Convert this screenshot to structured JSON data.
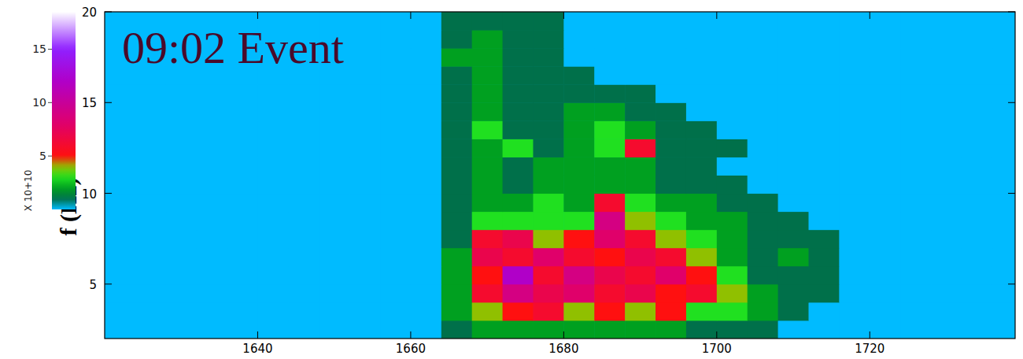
{
  "chart_data": {
    "type": "heatmap",
    "title": "09:02 Event",
    "y_label": "f (Hz)",
    "xlim": [
      1620,
      1739
    ],
    "ylim": [
      2,
      20
    ],
    "xticks": [
      1640,
      1660,
      1680,
      1700,
      1720
    ],
    "yticks": [
      5,
      10,
      15,
      20
    ],
    "x": [
      1620,
      1624,
      1628,
      1632,
      1636,
      1640,
      1644,
      1648,
      1652,
      1656,
      1660,
      1664,
      1668,
      1672,
      1676,
      1680,
      1684,
      1688,
      1692,
      1696,
      1700,
      1704,
      1708,
      1712,
      1716,
      1720,
      1724,
      1728,
      1732,
      1736
    ],
    "y": [
      2,
      3,
      4,
      5,
      6,
      7,
      8,
      9,
      10,
      11,
      12,
      13,
      14,
      15,
      16,
      17,
      18,
      19
    ],
    "cells": [
      [
        0,
        0,
        0,
        0,
        0,
        0,
        0,
        0,
        0,
        0,
        0,
        1,
        2,
        2,
        2,
        2,
        2,
        2,
        2,
        1,
        1,
        1,
        0,
        0,
        0,
        0,
        0,
        0,
        0,
        0
      ],
      [
        0,
        0,
        0,
        0,
        0,
        0,
        0,
        0,
        0,
        0,
        0,
        2,
        4,
        5,
        6,
        4,
        5,
        4,
        5,
        3,
        3,
        2,
        1,
        0,
        0,
        0,
        0,
        0,
        0,
        0
      ],
      [
        0,
        0,
        0,
        0,
        0,
        0,
        0,
        0,
        0,
        0,
        0,
        2,
        6,
        9,
        7,
        8,
        6,
        7,
        5,
        6,
        4,
        2,
        1,
        1,
        0,
        0,
        0,
        0,
        0,
        0
      ],
      [
        0,
        0,
        0,
        0,
        0,
        0,
        0,
        0,
        0,
        0,
        0,
        2,
        5,
        12,
        6,
        9,
        7,
        6,
        8,
        5,
        3,
        1,
        1,
        1,
        0,
        0,
        0,
        0,
        0,
        0
      ],
      [
        0,
        0,
        0,
        0,
        0,
        0,
        0,
        0,
        0,
        0,
        0,
        2,
        7,
        6,
        8,
        6,
        5,
        7,
        6,
        4,
        2,
        1,
        2,
        1,
        0,
        0,
        0,
        0,
        0,
        0
      ],
      [
        0,
        0,
        0,
        0,
        0,
        0,
        0,
        0,
        0,
        0,
        0,
        1,
        6,
        7,
        4,
        5,
        8,
        6,
        4,
        3,
        2,
        1,
        1,
        1,
        0,
        0,
        0,
        0,
        0,
        0
      ],
      [
        0,
        0,
        0,
        0,
        0,
        0,
        0,
        0,
        0,
        0,
        0,
        1,
        3,
        3,
        3,
        3,
        9,
        4,
        3,
        2,
        2,
        1,
        1,
        0,
        0,
        0,
        0,
        0,
        0,
        0
      ],
      [
        0,
        0,
        0,
        0,
        0,
        0,
        0,
        0,
        0,
        0,
        0,
        1,
        2,
        2,
        3,
        2,
        6,
        3,
        2,
        2,
        1,
        1,
        0,
        0,
        0,
        0,
        0,
        0,
        0,
        0
      ],
      [
        0,
        0,
        0,
        0,
        0,
        0,
        0,
        0,
        0,
        0,
        0,
        1,
        2,
        1,
        2,
        2,
        2,
        2,
        1,
        1,
        1,
        0,
        0,
        0,
        0,
        0,
        0,
        0,
        0,
        0
      ],
      [
        0,
        0,
        0,
        0,
        0,
        0,
        0,
        0,
        0,
        0,
        0,
        1,
        2,
        1,
        2,
        2,
        2,
        2,
        1,
        1,
        0,
        0,
        0,
        0,
        0,
        0,
        0,
        0,
        0,
        0
      ],
      [
        0,
        0,
        0,
        0,
        0,
        0,
        0,
        0,
        0,
        0,
        0,
        1,
        2,
        3,
        1,
        2,
        3,
        6,
        1,
        1,
        1,
        0,
        0,
        0,
        0,
        0,
        0,
        0,
        0,
        0
      ],
      [
        0,
        0,
        0,
        0,
        0,
        0,
        0,
        0,
        0,
        0,
        0,
        1,
        3,
        1,
        1,
        2,
        3,
        2,
        1,
        1,
        0,
        0,
        0,
        0,
        0,
        0,
        0,
        0,
        0,
        0
      ],
      [
        0,
        0,
        0,
        0,
        0,
        0,
        0,
        0,
        0,
        0,
        0,
        1,
        2,
        1,
        1,
        2,
        2,
        1,
        1,
        0,
        0,
        0,
        0,
        0,
        0,
        0,
        0,
        0,
        0,
        0
      ],
      [
        0,
        0,
        0,
        0,
        0,
        0,
        0,
        0,
        0,
        0,
        0,
        1,
        2,
        1,
        1,
        1,
        1,
        1,
        0,
        0,
        0,
        0,
        0,
        0,
        0,
        0,
        0,
        0,
        0,
        0
      ],
      [
        0,
        0,
        0,
        0,
        0,
        0,
        0,
        0,
        0,
        0,
        0,
        1,
        2,
        1,
        1,
        1,
        0,
        0,
        0,
        0,
        0,
        0,
        0,
        0,
        0,
        0,
        0,
        0,
        0,
        0
      ],
      [
        0,
        0,
        0,
        0,
        0,
        0,
        0,
        0,
        0,
        0,
        0,
        2,
        2,
        1,
        1,
        0,
        0,
        0,
        0,
        0,
        0,
        0,
        0,
        0,
        0,
        0,
        0,
        0,
        0,
        0
      ],
      [
        0,
        0,
        0,
        0,
        0,
        0,
        0,
        0,
        0,
        0,
        0,
        1,
        2,
        1,
        1,
        0,
        0,
        0,
        0,
        0,
        0,
        0,
        0,
        0,
        0,
        0,
        0,
        0,
        0,
        0
      ],
      [
        0,
        0,
        0,
        0,
        0,
        0,
        0,
        0,
        0,
        0,
        0,
        1,
        1,
        1,
        1,
        0,
        0,
        0,
        0,
        0,
        0,
        0,
        0,
        0,
        0,
        0,
        0,
        0,
        0,
        0
      ]
    ],
    "colorbar": {
      "range": [
        0,
        18.5
      ],
      "ticks": [
        5,
        10,
        15
      ],
      "label": "X 10+10"
    }
  }
}
